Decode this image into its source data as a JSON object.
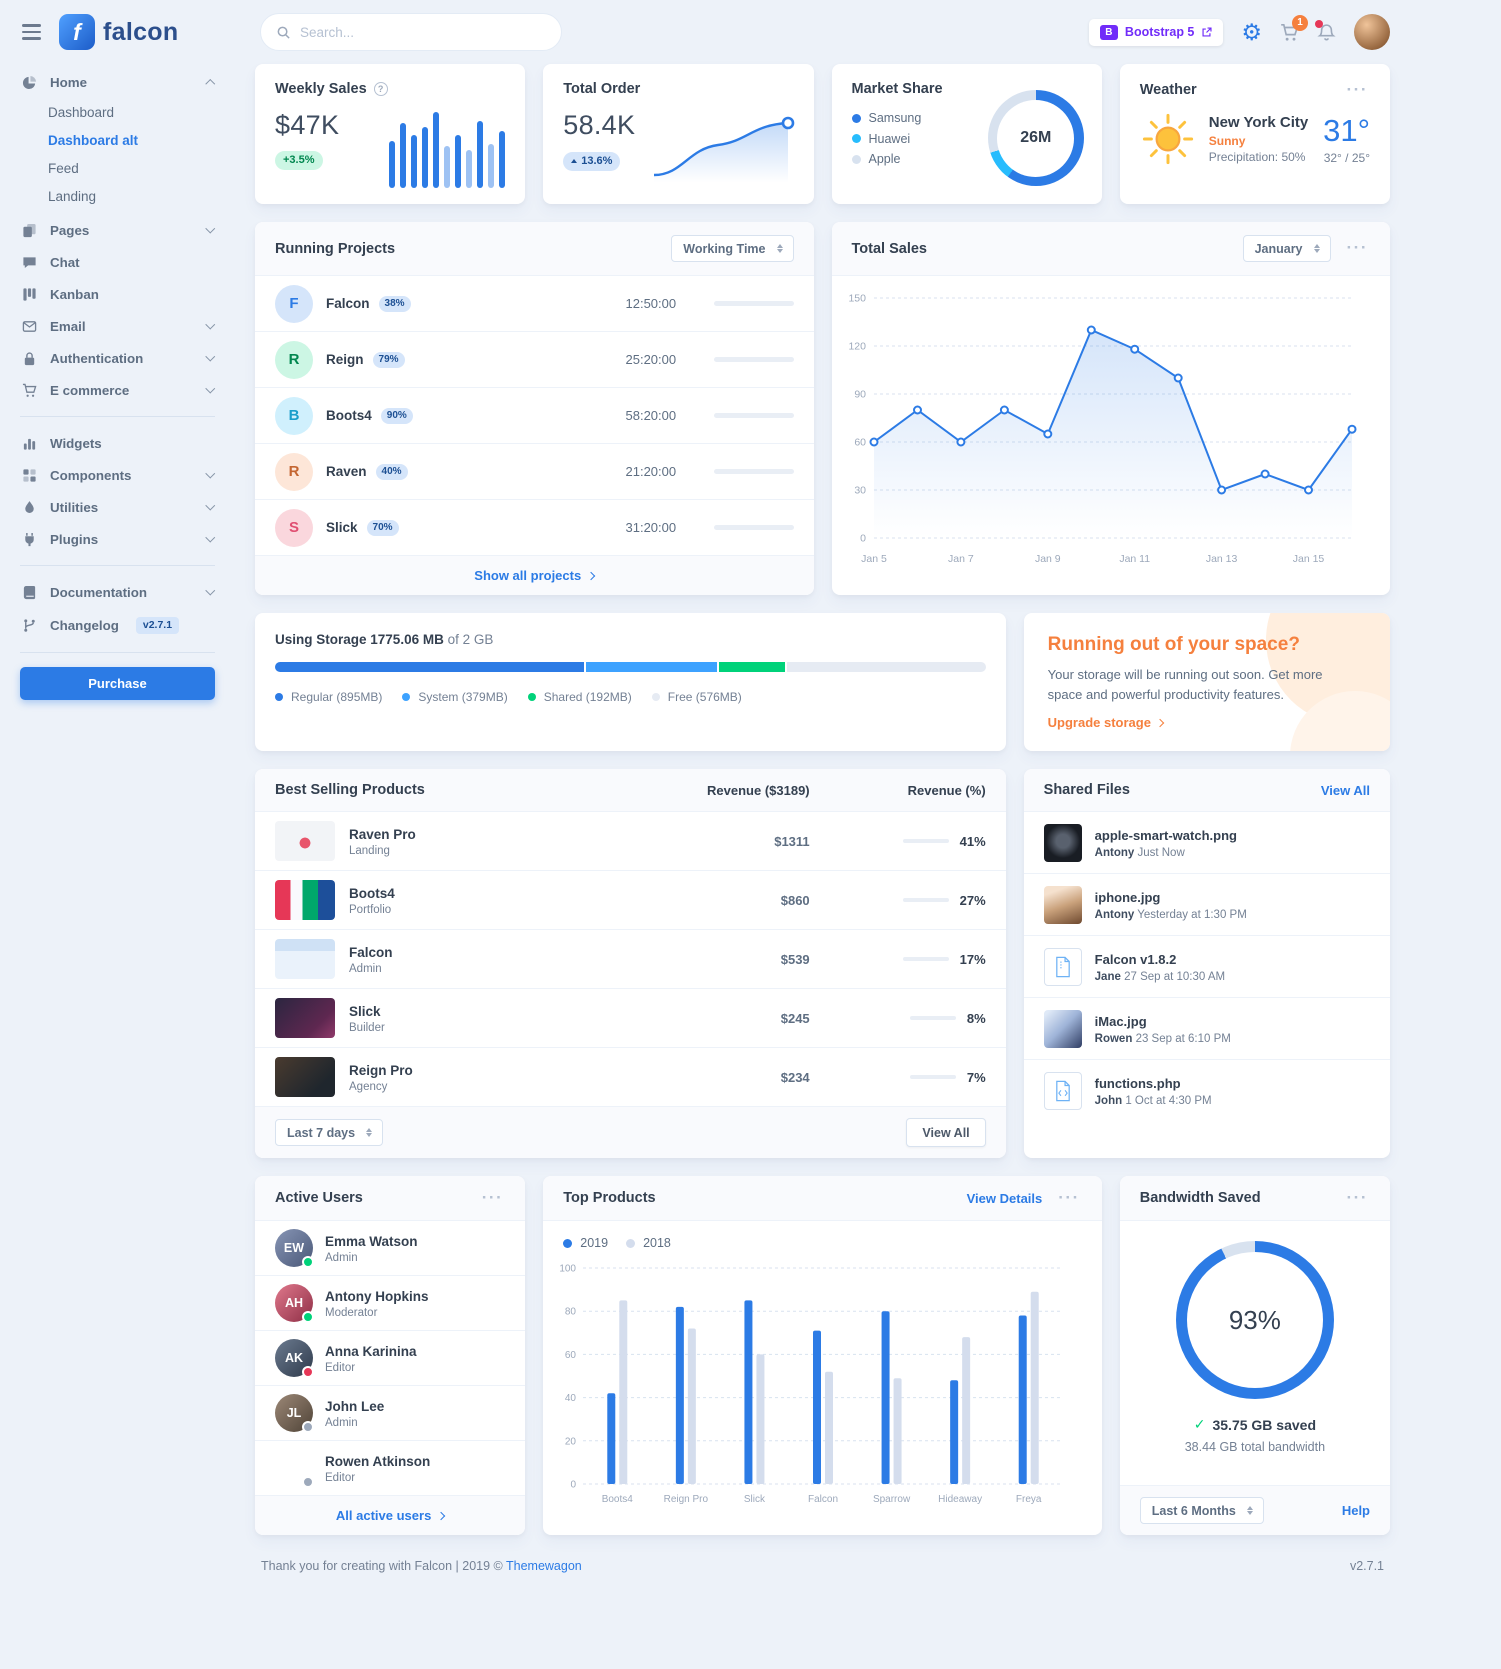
{
  "navbar": {
    "logo_text": "falcon",
    "search_placeholder": "Search...",
    "bootstrap_badge": "Bootstrap 5",
    "cart_count": "1"
  },
  "sidebar": {
    "home": "Home",
    "dashboard": "Dashboard",
    "dashboard_alt": "Dashboard alt",
    "feed": "Feed",
    "landing": "Landing",
    "pages": "Pages",
    "chat": "Chat",
    "kanban": "Kanban",
    "email": "Email",
    "authentication": "Authentication",
    "ecommerce": "E commerce",
    "widgets": "Widgets",
    "components": "Components",
    "utilities": "Utilities",
    "plugins": "Plugins",
    "documentation": "Documentation",
    "changelog": "Changelog",
    "changelog_badge": "v2.7.1",
    "purchase": "Purchase"
  },
  "weekly_sales": {
    "title": "Weekly Sales",
    "value": "$47K",
    "badge": "+3.5%",
    "bars": [
      45,
      62,
      50,
      58,
      72,
      40,
      50,
      36,
      64,
      42,
      54
    ],
    "light_bars": [
      5,
      7,
      9
    ]
  },
  "total_order": {
    "title": "Total Order",
    "value": "58.4K",
    "badge": "13.6%"
  },
  "market_share": {
    "title": "Market Share",
    "center_label": "26M",
    "segments": [
      {
        "label": "Samsung",
        "percent": 60,
        "color": "#2c7be5"
      },
      {
        "label": "Huawei",
        "percent": 10,
        "color": "#27bcfd"
      },
      {
        "label": "Apple",
        "percent": 30,
        "color": "#d8e2ef"
      }
    ]
  },
  "weather": {
    "title": "Weather",
    "city": "New York City",
    "condition": "Sunny",
    "precipitation": "Precipitation: 50%",
    "temperature": "31°",
    "high_low": "32° / 25°"
  },
  "running_projects": {
    "title": "Running Projects",
    "filter": "Working Time",
    "footer_link": "Show all projects",
    "items": [
      {
        "initial": "F",
        "name": "Falcon",
        "badge": "38%",
        "time": "12:50:00",
        "bg": "#d5e5fa",
        "fg": "#2c7be5"
      },
      {
        "initial": "R",
        "name": "Reign",
        "badge": "79%",
        "time": "25:20:00",
        "bg": "#ccf6e4",
        "fg": "#00864e"
      },
      {
        "initial": "B",
        "name": "Boots4",
        "badge": "90%",
        "time": "58:20:00",
        "bg": "#d0f0fd",
        "fg": "#1a9ecb"
      },
      {
        "initial": "R",
        "name": "Raven",
        "badge": "40%",
        "time": "21:20:00",
        "bg": "#fde6d8",
        "fg": "#c46632"
      },
      {
        "initial": "S",
        "name": "Slick",
        "badge": "70%",
        "time": "31:20:00",
        "bg": "#fad7dd",
        "fg": "#e04f72"
      }
    ]
  },
  "total_sales": {
    "title": "Total Sales",
    "month": "January",
    "y_ticks": [
      0,
      30,
      60,
      90,
      120,
      150
    ],
    "x_labels": [
      "Jan 5",
      "Jan 7",
      "Jan 9",
      "Jan 11",
      "Jan 13",
      "Jan 15"
    ],
    "values": [
      60,
      80,
      60,
      80,
      65,
      130,
      118,
      100,
      30,
      40,
      30,
      68
    ],
    "line_color": "#2c7be5"
  },
  "storage": {
    "label": "Using Storage",
    "used": "1775.06 MB",
    "capacity": "of 2 GB",
    "total_mb": 2048,
    "segments": [
      {
        "label": "Regular (895MB)",
        "mb": 895,
        "color": "#2c7be5"
      },
      {
        "label": "System (379MB)",
        "mb": 379,
        "color": "#3da2ff"
      },
      {
        "label": "Shared (192MB)",
        "mb": 192,
        "color": "#00d27a"
      },
      {
        "label": "Free (576MB)",
        "mb": 576,
        "color": "#e6ebf3"
      }
    ]
  },
  "space_card": {
    "title": "Running out of your space?",
    "body": "Your storage will be running out soon. Get more space and powerful productivity features.",
    "link": "Upgrade storage"
  },
  "best_selling": {
    "title": "Best Selling Products",
    "col_revenue": "Revenue ($3189)",
    "col_percent": "Revenue (%)",
    "range": "Last 7 days",
    "view_all": "View All",
    "items": [
      {
        "name": "Raven Pro",
        "category": "Landing",
        "revenue": "$1311",
        "percent": "41%"
      },
      {
        "name": "Boots4",
        "category": "Portfolio",
        "revenue": "$860",
        "percent": "27%"
      },
      {
        "name": "Falcon",
        "category": "Admin",
        "revenue": "$539",
        "percent": "17%"
      },
      {
        "name": "Slick",
        "category": "Builder",
        "revenue": "$245",
        "percent": "8%"
      },
      {
        "name": "Reign Pro",
        "category": "Agency",
        "revenue": "$234",
        "percent": "7%"
      }
    ]
  },
  "shared_files": {
    "title": "Shared Files",
    "view_all": "View All",
    "items": [
      {
        "name": "apple-smart-watch.png",
        "user": "Antony",
        "time": "Just Now"
      },
      {
        "name": "iphone.jpg",
        "user": "Antony",
        "time": "Yesterday at 1:30 PM"
      },
      {
        "name": "Falcon v1.8.2",
        "user": "Jane",
        "time": "27 Sep at 10:30 AM"
      },
      {
        "name": "iMac.jpg",
        "user": "Rowen",
        "time": "23 Sep at 6:10 PM"
      },
      {
        "name": "functions.php",
        "user": "John",
        "time": "1 Oct at 4:30 PM"
      }
    ]
  },
  "active_users": {
    "title": "Active Users",
    "footer_link": "All active users",
    "items": [
      {
        "name": "Emma Watson",
        "role": "Admin",
        "status_color": "#00d27a"
      },
      {
        "name": "Antony Hopkins",
        "role": "Moderator",
        "status_color": "#00d27a"
      },
      {
        "name": "Anna Karinina",
        "role": "Editor",
        "status_color": "#e63757"
      },
      {
        "name": "John Lee",
        "role": "Admin",
        "status_color": "#9da9bb"
      },
      {
        "name": "Rowen Atkinson",
        "role": "Editor",
        "status_color": "#9da9bb"
      }
    ]
  },
  "top_products": {
    "title": "Top Products",
    "view_details": "View Details",
    "categories": [
      "Boots4",
      "Reign Pro",
      "Slick",
      "Falcon",
      "Sparrow",
      "Hideaway",
      "Freya"
    ],
    "y_ticks": [
      0,
      20,
      40,
      60,
      80,
      100
    ],
    "series": [
      {
        "name": "2019",
        "color": "#2c7be5",
        "values": [
          42,
          82,
          85,
          71,
          80,
          48,
          78
        ]
      },
      {
        "name": "2018",
        "color": "#d4dded",
        "values": [
          85,
          72,
          60,
          52,
          49,
          68,
          89
        ]
      }
    ]
  },
  "bandwidth": {
    "title": "Bandwidth Saved",
    "percent": 93,
    "center_label": "93%",
    "ring_color": "#2c7be5",
    "track_color": "#d8e2ef",
    "saved": "35.75 GB saved",
    "total": "38.44 GB total bandwidth",
    "range": "Last 6 Months",
    "help": "Help"
  },
  "footer": {
    "text": "Thank you for creating with Falcon | 2019 © ",
    "link": "Themewagon",
    "version": "v2.7.1"
  }
}
